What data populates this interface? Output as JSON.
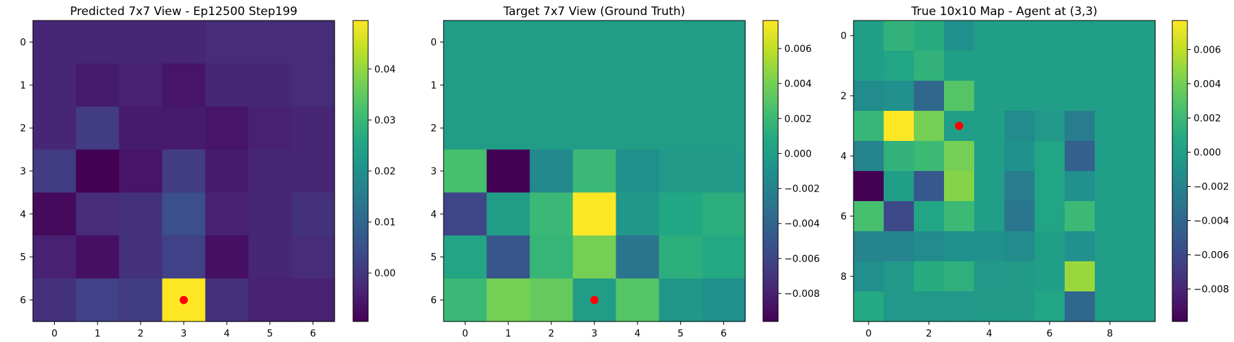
{
  "chart_data": [
    {
      "type": "heatmap",
      "title": "Predicted 7x7 View - Ep12500 Step199",
      "x_ticks": [
        0,
        1,
        2,
        3,
        4,
        5,
        6
      ],
      "y_ticks": [
        0,
        1,
        2,
        3,
        4,
        5,
        6
      ],
      "vmin": -0.0095,
      "vmax": 0.0495,
      "colorbar_ticks": [
        0.0,
        0.01,
        0.02,
        0.03,
        0.04
      ],
      "colorbar_labels": [
        "0.00",
        "0.01",
        "0.02",
        "0.03",
        "0.04"
      ],
      "values": [
        [
          -0.003,
          -0.003,
          -0.003,
          -0.003,
          -0.002,
          -0.002,
          -0.002
        ],
        [
          -0.003,
          -0.005,
          -0.004,
          -0.006,
          -0.003,
          -0.003,
          -0.002
        ],
        [
          -0.003,
          0.001,
          -0.005,
          -0.005,
          -0.006,
          -0.004,
          -0.003
        ],
        [
          0.001,
          -0.0095,
          -0.006,
          0.001,
          -0.005,
          -0.003,
          -0.003
        ],
        [
          -0.008,
          -0.002,
          -0.001,
          0.005,
          -0.004,
          -0.003,
          -0.001
        ],
        [
          -0.004,
          -0.007,
          -0.001,
          0.002,
          -0.007,
          -0.003,
          -0.002
        ],
        [
          -0.001,
          0.002,
          0.001,
          0.0495,
          -0.001,
          -0.004,
          -0.004
        ]
      ],
      "marker": {
        "x": 3,
        "y": 6,
        "color": "#ff0000"
      }
    },
    {
      "type": "heatmap",
      "title": "Target 7x7 View (Ground Truth)",
      "x_ticks": [
        0,
        1,
        2,
        3,
        4,
        5,
        6
      ],
      "y_ticks": [
        0,
        1,
        2,
        3,
        4,
        5,
        6
      ],
      "vmin": -0.0096,
      "vmax": 0.0076,
      "colorbar_ticks": [
        -0.008,
        -0.006,
        -0.004,
        -0.002,
        0.0,
        0.002,
        0.004,
        0.006
      ],
      "colorbar_labels": [
        "−0.008",
        "−0.006",
        "−0.004",
        "−0.002",
        "0.000",
        "0.002",
        "0.004",
        "0.006"
      ],
      "values": [
        [
          0.0,
          0.0,
          0.0,
          0.0,
          0.0,
          0.0,
          0.0
        ],
        [
          0.0,
          0.0,
          0.0,
          0.0,
          0.0,
          0.0,
          0.0
        ],
        [
          0.0,
          0.0,
          0.0,
          0.0,
          0.0,
          0.0,
          0.0
        ],
        [
          0.0025,
          -0.0096,
          -0.0015,
          0.002,
          -0.001,
          -0.0003,
          -0.0003
        ],
        [
          -0.006,
          0.0,
          0.002,
          0.0076,
          -0.0005,
          0.0007,
          0.0012
        ],
        [
          0.0005,
          -0.005,
          0.0018,
          0.004,
          -0.003,
          0.0013,
          0.0008
        ],
        [
          0.002,
          0.004,
          0.0035,
          0.0,
          0.003,
          -0.0005,
          -0.001
        ]
      ],
      "marker": {
        "x": 3,
        "y": 6,
        "color": "#ff0000"
      }
    },
    {
      "type": "heatmap",
      "title": "True 10x10 Map - Agent at (3,3)",
      "x_ticks": [
        0,
        2,
        4,
        6,
        8
      ],
      "y_ticks": [
        0,
        2,
        4,
        6,
        8
      ],
      "size": 10,
      "vmin": -0.0099,
      "vmax": 0.0077,
      "colorbar_ticks": [
        -0.008,
        -0.006,
        -0.004,
        -0.002,
        0.0,
        0.002,
        0.004,
        0.006
      ],
      "colorbar_labels": [
        "−0.008",
        "−0.006",
        "−0.004",
        "−0.002",
        "0.000",
        "0.002",
        "0.004",
        "0.006"
      ],
      "values": [
        [
          0.0,
          0.0015,
          0.001,
          -0.001,
          0.0,
          0.0,
          0.0,
          0.0,
          0.0,
          0.0
        ],
        [
          0.0,
          0.0005,
          0.0015,
          0.0,
          0.0,
          0.0,
          0.0,
          0.0,
          0.0,
          0.0
        ],
        [
          -0.0015,
          -0.001,
          -0.004,
          0.003,
          0.0,
          0.0,
          0.0,
          0.0,
          0.0,
          0.0
        ],
        [
          0.0018,
          0.0077,
          0.004,
          0.0,
          0.0,
          -0.0015,
          -0.0005,
          -0.0025,
          0.0,
          0.0
        ],
        [
          -0.002,
          0.0015,
          0.002,
          0.004,
          0.0,
          -0.001,
          0.0005,
          -0.0045,
          0.0,
          0.0
        ],
        [
          -0.0099,
          0.0,
          -0.005,
          0.0045,
          0.0,
          -0.0025,
          0.0005,
          -0.001,
          0.0,
          0.0
        ],
        [
          0.0025,
          -0.006,
          0.0005,
          0.002,
          0.0,
          -0.003,
          0.0005,
          0.002,
          0.0,
          0.0
        ],
        [
          -0.002,
          -0.002,
          -0.0015,
          -0.001,
          -0.001,
          -0.0015,
          0.0,
          -0.001,
          0.0,
          0.0
        ],
        [
          -0.0012,
          -0.0005,
          0.001,
          0.0013,
          -0.0005,
          -0.0003,
          0.0,
          0.005,
          0.0,
          0.0
        ],
        [
          0.0008,
          -0.0005,
          -0.0005,
          -0.0005,
          -0.0003,
          -0.0003,
          0.0005,
          -0.004,
          0.0,
          0.0
        ]
      ],
      "marker": {
        "x": 3,
        "y": 3,
        "color": "#ff0000"
      }
    }
  ]
}
